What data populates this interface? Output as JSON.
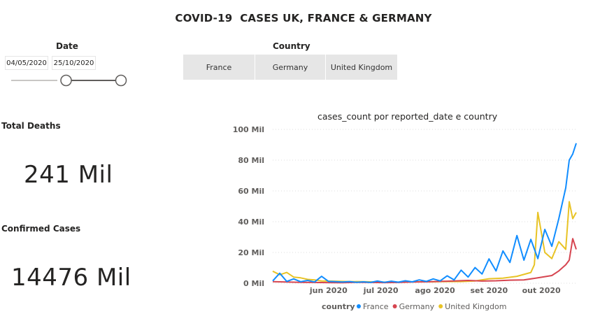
{
  "report": {
    "title": "COVID-19  CASES UK, FRANCE & GERMANY"
  },
  "date_slicer": {
    "header": "Date",
    "start": "04/05/2020",
    "end": "25/10/2020",
    "selected_range_fraction": [
      0.5,
      1.0
    ]
  },
  "country_slicer": {
    "header": "Country",
    "options": [
      "France",
      "Germany",
      "United Kingdom"
    ]
  },
  "kpis": {
    "total_deaths": {
      "label": "Total Deaths",
      "value": "241 Mil"
    },
    "confirmed_cases": {
      "label": "Confirmed Cases",
      "value": "14476 Mil"
    }
  },
  "chart_data": {
    "type": "line",
    "title": "cases_count por reported_date e country",
    "xlabel": "",
    "ylabel": "",
    "y_ticks": [
      "0 Mil",
      "20 Mil",
      "40 Mil",
      "60 Mil",
      "80 Mil",
      "100 Mil"
    ],
    "y_tick_values": [
      0,
      20,
      40,
      60,
      80,
      100
    ],
    "ylim": [
      0,
      100
    ],
    "x_ticks": [
      "jun 2020",
      "jul 2020",
      "ago 2020",
      "set 2020",
      "out 2020"
    ],
    "x_tick_dates": [
      "2020-06-01",
      "2020-07-01",
      "2020-08-01",
      "2020-09-01",
      "2020-10-01"
    ],
    "x_range": [
      "2020-05-04",
      "2020-10-25"
    ],
    "grid": "horizontal dotted",
    "legend_title": "country",
    "legend_position": "bottom",
    "series": [
      {
        "name": "France",
        "color": "#118DFF",
        "dates": [
          "2020-05-04",
          "2020-05-08",
          "2020-05-12",
          "2020-05-16",
          "2020-05-20",
          "2020-05-24",
          "2020-05-28",
          "2020-06-01",
          "2020-06-05",
          "2020-06-09",
          "2020-06-13",
          "2020-06-17",
          "2020-06-21",
          "2020-06-25",
          "2020-06-29",
          "2020-07-03",
          "2020-07-07",
          "2020-07-11",
          "2020-07-15",
          "2020-07-19",
          "2020-07-23",
          "2020-07-27",
          "2020-07-31",
          "2020-08-04",
          "2020-08-08",
          "2020-08-12",
          "2020-08-16",
          "2020-08-20",
          "2020-08-24",
          "2020-08-28",
          "2020-09-01",
          "2020-09-05",
          "2020-09-09",
          "2020-09-13",
          "2020-09-17",
          "2020-09-21",
          "2020-09-25",
          "2020-09-29",
          "2020-10-03",
          "2020-10-07",
          "2020-10-11",
          "2020-10-15",
          "2020-10-19",
          "2020-10-21",
          "2020-10-23",
          "2020-10-25"
        ],
        "values": [
          1.5,
          6.5,
          1.2,
          2.8,
          1.0,
          1.8,
          0.8,
          4.5,
          1.2,
          1.0,
          0.8,
          1.1,
          0.6,
          0.9,
          0.5,
          1.4,
          0.6,
          1.3,
          0.7,
          1.6,
          0.9,
          2.2,
          1.2,
          2.8,
          1.5,
          4.8,
          2.2,
          8.5,
          4.0,
          10.2,
          6.0,
          15.8,
          8.0,
          21.0,
          13.5,
          31.0,
          15.0,
          28.5,
          16.0,
          35.0,
          24.0,
          42.0,
          62.0,
          80.0,
          84.0,
          91.0
        ]
      },
      {
        "name": "Germany",
        "color": "#D64550",
        "dates": [
          "2020-05-04",
          "2020-05-12",
          "2020-05-20",
          "2020-05-28",
          "2020-06-05",
          "2020-06-13",
          "2020-06-21",
          "2020-06-29",
          "2020-07-07",
          "2020-07-15",
          "2020-07-23",
          "2020-07-31",
          "2020-08-08",
          "2020-08-16",
          "2020-08-24",
          "2020-09-01",
          "2020-09-09",
          "2020-09-17",
          "2020-09-25",
          "2020-10-03",
          "2020-10-11",
          "2020-10-15",
          "2020-10-19",
          "2020-10-21",
          "2020-10-23",
          "2020-10-25"
        ],
        "values": [
          1.0,
          0.8,
          0.6,
          0.5,
          0.4,
          0.3,
          0.6,
          0.5,
          0.4,
          0.5,
          0.8,
          0.9,
          1.2,
          1.5,
          1.8,
          1.4,
          1.6,
          2.0,
          2.2,
          3.5,
          5.0,
          8.0,
          12.0,
          15.0,
          29.0,
          22.0
        ]
      },
      {
        "name": "United Kingdom",
        "color": "#E8C325",
        "dates": [
          "2020-05-04",
          "2020-05-08",
          "2020-05-12",
          "2020-05-16",
          "2020-05-20",
          "2020-05-24",
          "2020-05-28",
          "2020-06-01",
          "2020-06-09",
          "2020-06-17",
          "2020-06-25",
          "2020-07-03",
          "2020-07-11",
          "2020-07-19",
          "2020-07-27",
          "2020-08-04",
          "2020-08-12",
          "2020-08-20",
          "2020-08-28",
          "2020-09-05",
          "2020-09-13",
          "2020-09-21",
          "2020-09-29",
          "2020-10-01",
          "2020-10-03",
          "2020-10-07",
          "2020-10-11",
          "2020-10-15",
          "2020-10-19",
          "2020-10-21",
          "2020-10-23",
          "2020-10-25"
        ],
        "values": [
          7.8,
          5.5,
          7.0,
          4.0,
          3.5,
          2.5,
          2.2,
          1.5,
          1.3,
          1.1,
          1.0,
          0.8,
          0.7,
          0.8,
          0.9,
          0.9,
          1.1,
          1.1,
          1.5,
          2.9,
          3.3,
          4.5,
          7.0,
          12.0,
          46.0,
          20.0,
          16.0,
          27.0,
          22.0,
          53.0,
          42.0,
          46.0
        ]
      }
    ]
  }
}
